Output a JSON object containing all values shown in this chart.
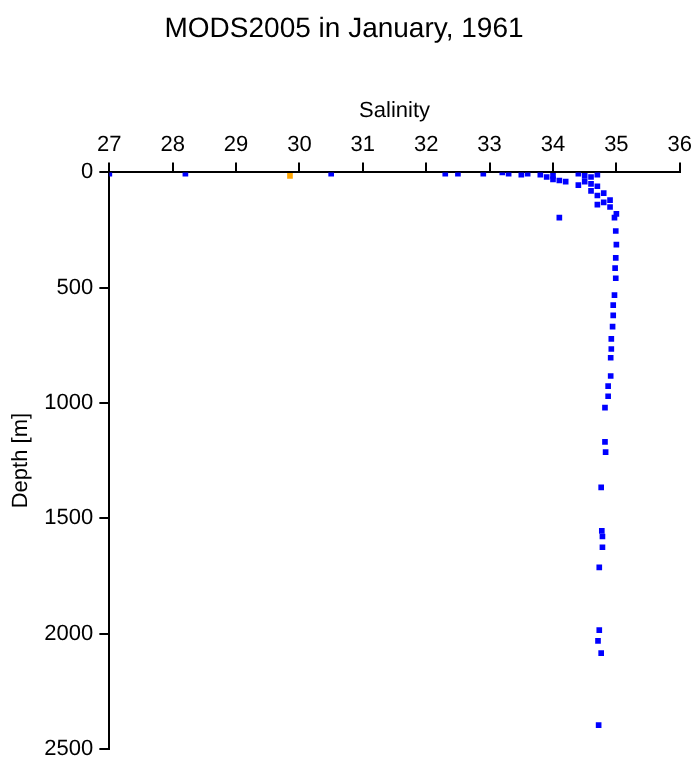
{
  "chart_data": {
    "type": "scatter",
    "title": "MODS2005 in January, 1961",
    "xlabel": "Salinity",
    "ylabel": "Depth [m]",
    "xlim": [
      27,
      36
    ],
    "xticks": [
      27,
      28,
      29,
      30,
      31,
      32,
      33,
      34,
      35,
      36
    ],
    "ylim": [
      2500,
      0
    ],
    "yticks": [
      0,
      500,
      1000,
      1500,
      2000,
      2500
    ],
    "grid": false,
    "legend": false,
    "marker": "square",
    "series": [
      {
        "color": "#0000ff",
        "x": [
          27.0,
          28.2,
          30.5,
          32.3,
          32.5,
          32.9,
          33.2,
          33.3,
          33.5,
          33.6,
          33.8,
          33.9,
          34.0,
          34.0,
          34.1,
          34.2,
          34.4,
          34.5,
          34.6,
          34.7,
          34.5,
          34.6,
          34.7,
          34.4,
          34.6,
          34.7,
          34.8,
          34.9,
          34.9,
          35.0,
          34.1,
          34.8,
          34.7,
          34.97,
          34.99,
          35.0,
          34.99,
          34.98,
          34.99,
          34.97,
          34.95,
          34.95,
          34.94,
          34.92,
          34.92,
          34.91,
          34.91,
          34.87,
          34.87,
          34.82,
          34.82,
          34.83,
          34.76,
          34.77,
          34.78,
          34.78,
          34.73,
          34.73,
          34.71,
          34.76,
          34.72
        ],
        "values": [
          5,
          5,
          5,
          5,
          5,
          5,
          0,
          5,
          10,
          5,
          10,
          20,
          15,
          30,
          35,
          40,
          5,
          15,
          20,
          10,
          40,
          50,
          60,
          55,
          80,
          100,
          90,
          120,
          150,
          180,
          196,
          130,
          140,
          196,
          254,
          313,
          371,
          415,
          459,
          532,
          576,
          620,
          669,
          722,
          766,
          804,
          883,
          927,
          971,
          1020,
          1169,
          1213,
          1366,
          1555,
          1579,
          1626,
          1713,
          1985,
          2032,
          2085,
          2397
        ]
      },
      {
        "color": "#ffa500",
        "x": [
          29.85
        ],
        "values": [
          15
        ]
      }
    ]
  }
}
